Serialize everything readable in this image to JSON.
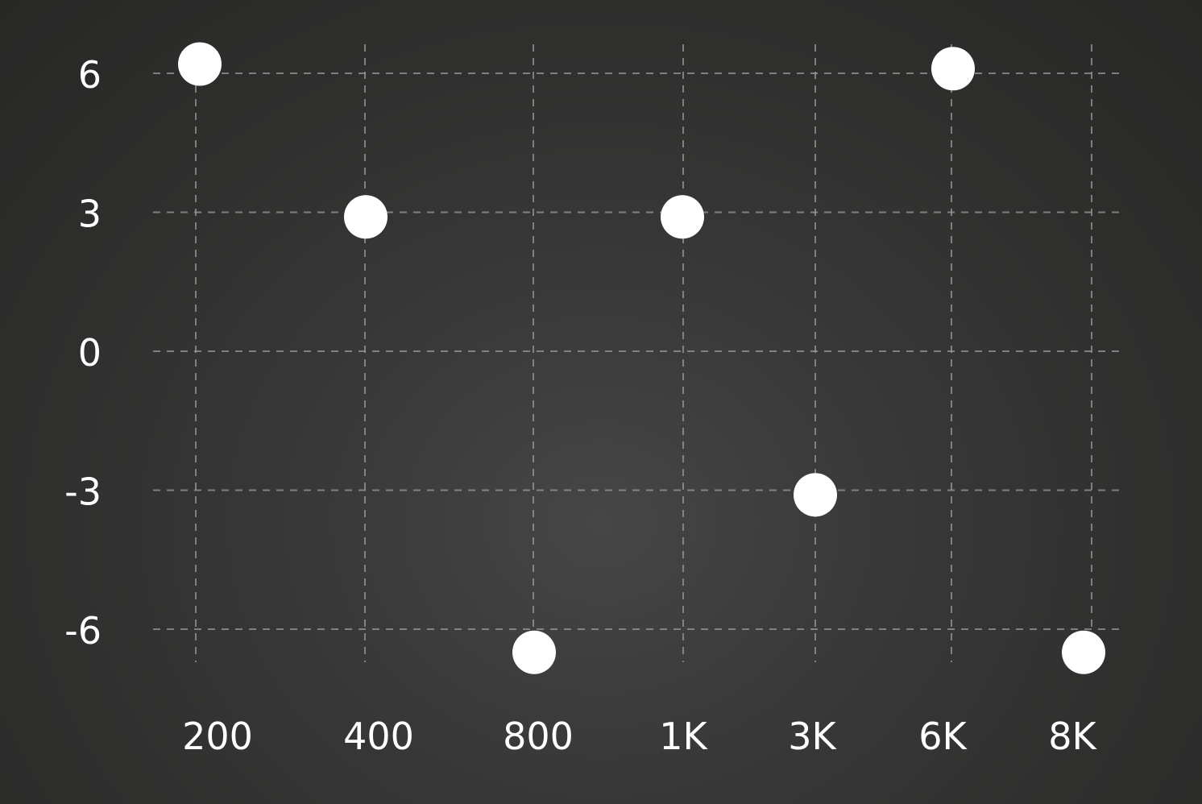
{
  "chart_data": {
    "type": "scatter",
    "categories": [
      "200",
      "400",
      "800",
      "1K",
      "3K",
      "6K",
      "8K"
    ],
    "values": [
      6.2,
      2.9,
      -6.5,
      2.9,
      -3.1,
      6.1,
      -6.5
    ],
    "y_ticks": [
      "6",
      "3",
      "0",
      "-3",
      "-6"
    ],
    "y_tick_values": [
      6,
      3,
      0,
      -3,
      -6
    ],
    "ylim": [
      -6.8,
      6.0
    ],
    "grid": true,
    "point_color": "#ffffff",
    "grid_color": "#9a9a9a",
    "background_color": "#333333"
  }
}
